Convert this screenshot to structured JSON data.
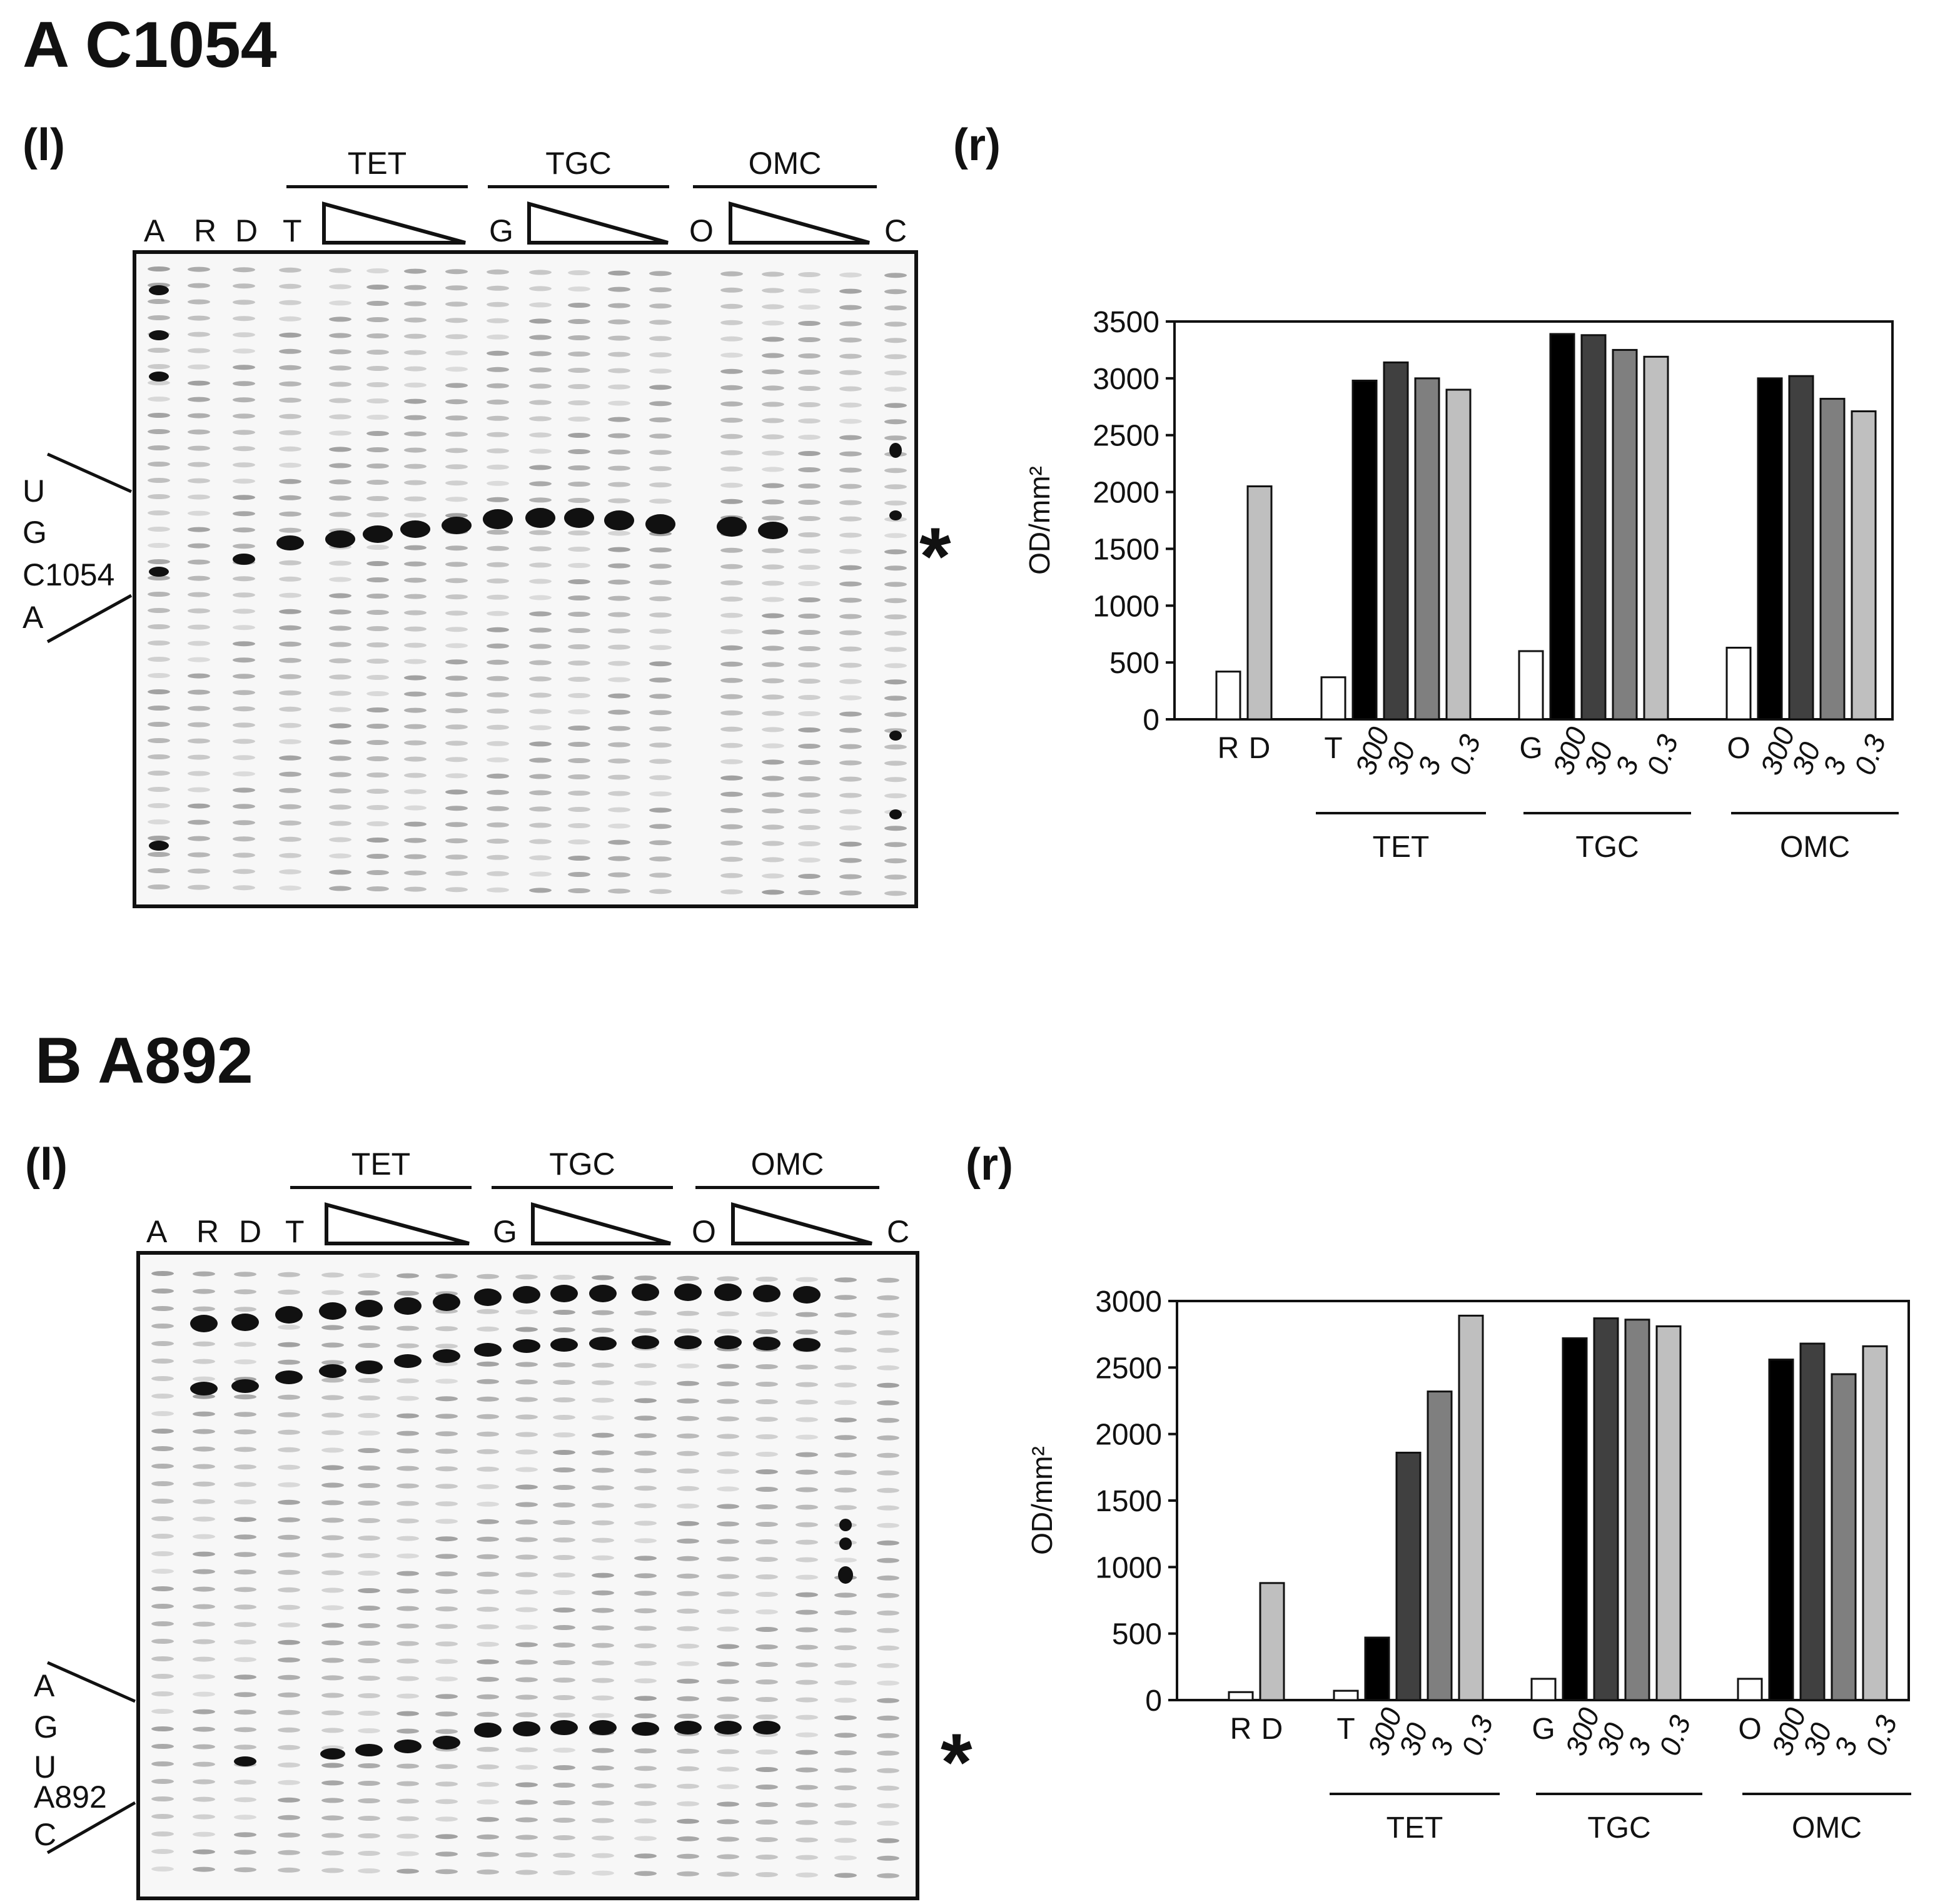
{
  "panels": {
    "a": {
      "title": "A C1054",
      "left_label": "(l)",
      "right_label": "(r)",
      "lanes": [
        "A",
        "R",
        "D",
        "T",
        "G",
        "O",
        "C"
      ],
      "groups": [
        "TET",
        "TGC",
        "OMC"
      ],
      "sequence": [
        "U",
        "G",
        "C1054",
        "A"
      ],
      "marker": "*"
    },
    "b": {
      "title": "B A892",
      "left_label": "(l)",
      "right_label": "(r)",
      "lanes": [
        "A",
        "R",
        "D",
        "T",
        "G",
        "O",
        "C"
      ],
      "groups": [
        "TET",
        "TGC",
        "OMC"
      ],
      "sequence": [
        "A",
        "G",
        "U",
        "A892",
        "C"
      ],
      "marker": "*"
    }
  },
  "colors": {
    "white": "#ffffff",
    "black": "#000000",
    "dark_gray": "#404040",
    "mid_gray": "#7f7f7f",
    "light_gray": "#bfbfbf"
  },
  "chart_data": [
    {
      "type": "bar",
      "panel": "A C1054 (r)",
      "ylabel": "OD/mm²",
      "ylim": [
        0,
        3500
      ],
      "yticks": [
        0,
        500,
        1000,
        1500,
        2000,
        2500,
        3000,
        3500
      ],
      "bars": [
        {
          "label": "R",
          "value": 420,
          "color": "#ffffff"
        },
        {
          "label": "D",
          "value": 2050,
          "color": "#bfbfbf"
        },
        {
          "label": "T",
          "value": 370,
          "color": "#ffffff"
        },
        {
          "label": "300",
          "value": 2980,
          "color": "#000000"
        },
        {
          "label": "30",
          "value": 3140,
          "color": "#404040"
        },
        {
          "label": "3",
          "value": 3000,
          "color": "#7f7f7f"
        },
        {
          "label": "0.3",
          "value": 2900,
          "color": "#bfbfbf"
        },
        {
          "label": "G",
          "value": 600,
          "color": "#ffffff"
        },
        {
          "label": "300",
          "value": 3390,
          "color": "#000000"
        },
        {
          "label": "30",
          "value": 3380,
          "color": "#404040"
        },
        {
          "label": "3",
          "value": 3250,
          "color": "#7f7f7f"
        },
        {
          "label": "0.3",
          "value": 3190,
          "color": "#bfbfbf"
        },
        {
          "label": "O",
          "value": 630,
          "color": "#ffffff"
        },
        {
          "label": "300",
          "value": 3000,
          "color": "#000000"
        },
        {
          "label": "30",
          "value": 3020,
          "color": "#404040"
        },
        {
          "label": "3",
          "value": 2820,
          "color": "#7f7f7f"
        },
        {
          "label": "0.3",
          "value": 2710,
          "color": "#bfbfbf"
        }
      ],
      "groups": [
        "TET",
        "TGC",
        "OMC"
      ]
    },
    {
      "type": "bar",
      "panel": "B A892 (r)",
      "ylabel": "OD/mm²",
      "ylim": [
        0,
        3000
      ],
      "yticks": [
        0,
        500,
        1000,
        1500,
        2000,
        2500,
        3000
      ],
      "bars": [
        {
          "label": "R",
          "value": 60,
          "color": "#ffffff"
        },
        {
          "label": "D",
          "value": 880,
          "color": "#bfbfbf"
        },
        {
          "label": "T",
          "value": 70,
          "color": "#ffffff"
        },
        {
          "label": "300",
          "value": 470,
          "color": "#000000"
        },
        {
          "label": "30",
          "value": 1860,
          "color": "#404040"
        },
        {
          "label": "3",
          "value": 2320,
          "color": "#7f7f7f"
        },
        {
          "label": "0.3",
          "value": 2890,
          "color": "#bfbfbf"
        },
        {
          "label": "G",
          "value": 160,
          "color": "#ffffff"
        },
        {
          "label": "300",
          "value": 2720,
          "color": "#000000"
        },
        {
          "label": "30",
          "value": 2870,
          "color": "#404040"
        },
        {
          "label": "3",
          "value": 2860,
          "color": "#7f7f7f"
        },
        {
          "label": "0.3",
          "value": 2810,
          "color": "#bfbfbf"
        },
        {
          "label": "O",
          "value": 160,
          "color": "#ffffff"
        },
        {
          "label": "300",
          "value": 2560,
          "color": "#000000"
        },
        {
          "label": "30",
          "value": 2680,
          "color": "#404040"
        },
        {
          "label": "3",
          "value": 2450,
          "color": "#7f7f7f"
        },
        {
          "label": "0.3",
          "value": 2660,
          "color": "#bfbfbf"
        }
      ],
      "groups": [
        "TET",
        "TGC",
        "OMC"
      ]
    }
  ]
}
